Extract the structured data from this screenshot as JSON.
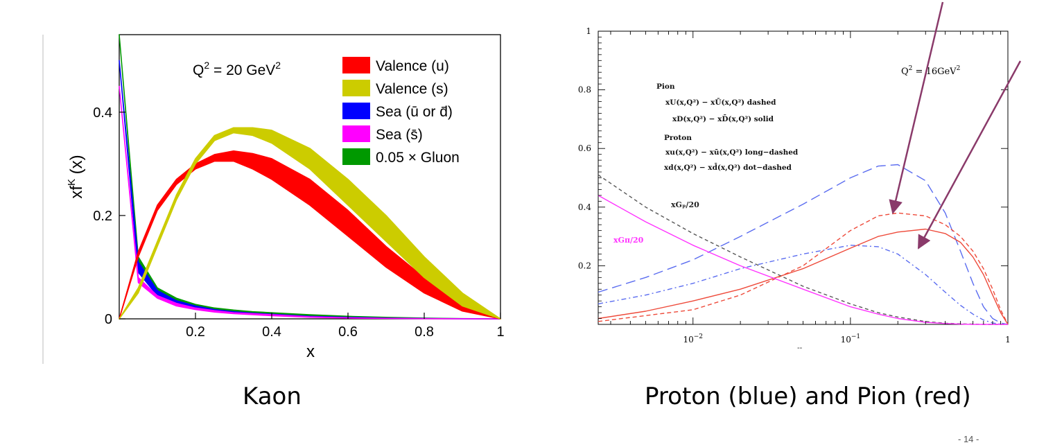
{
  "slide": {
    "captions": {
      "left": "Kaon",
      "right": "Proton (blue) and Pion (red)"
    },
    "page_number": "- 14 -"
  },
  "colors": {
    "valence_u": "#ff0000",
    "valence_s": "#cccc00",
    "sea_ubar_dbar": "#0000ff",
    "sea_sbar": "#ff00ff",
    "gluon": "#009900",
    "proton": "#5a6cf0",
    "pion": "#ee4a3a",
    "gluon_p": "#555555",
    "gluon_pi": "#ff33ff",
    "arrow": "#8a3a6a"
  },
  "chart_data": [
    {
      "type": "area",
      "title": "Q² = 20 GeV²",
      "xlabel": "x",
      "ylabel": "xfᴷ (x)",
      "xlim": [
        0,
        1
      ],
      "ylim": [
        0,
        0.55
      ],
      "xticks": [
        "0.2",
        "0.4",
        "0.6",
        "0.8",
        "1"
      ],
      "yticks": [
        "0",
        "0.2",
        "0.4"
      ],
      "legend_position": "top-right",
      "legend": [
        "Valence (u)",
        "Valence (s)",
        "Sea (ū or d̄)",
        "Sea (s̄)",
        "0.05 × Gluon"
      ],
      "x": [
        0.0,
        0.05,
        0.1,
        0.15,
        0.2,
        0.25,
        0.3,
        0.35,
        0.4,
        0.5,
        0.6,
        0.7,
        0.8,
        0.9,
        1.0
      ],
      "series": [
        {
          "name": "Valence (u)",
          "color": "valence_u",
          "lower": [
            0.0,
            0.12,
            0.21,
            0.26,
            0.29,
            0.305,
            0.305,
            0.29,
            0.27,
            0.22,
            0.16,
            0.1,
            0.05,
            0.015,
            0.0
          ],
          "upper": [
            0.0,
            0.13,
            0.22,
            0.27,
            0.3,
            0.318,
            0.325,
            0.32,
            0.31,
            0.27,
            0.21,
            0.14,
            0.08,
            0.03,
            0.0
          ]
        },
        {
          "name": "Valence (s)",
          "color": "valence_s",
          "lower": [
            0.0,
            0.05,
            0.14,
            0.23,
            0.3,
            0.345,
            0.36,
            0.355,
            0.34,
            0.29,
            0.22,
            0.15,
            0.08,
            0.025,
            0.0
          ],
          "upper": [
            0.0,
            0.06,
            0.15,
            0.24,
            0.31,
            0.355,
            0.37,
            0.37,
            0.365,
            0.33,
            0.27,
            0.2,
            0.12,
            0.05,
            0.0
          ]
        },
        {
          "name": "Sea (ū or d̄)",
          "color": "sea_ubar_dbar",
          "lower": [
            0.5,
            0.09,
            0.045,
            0.03,
            0.02,
            0.015,
            0.012,
            0.009,
            0.007,
            0.004,
            0.002,
            0.001,
            0.0005,
            0.0002,
            0.0
          ],
          "upper": [
            0.5,
            0.11,
            0.055,
            0.035,
            0.025,
            0.018,
            0.014,
            0.011,
            0.009,
            0.005,
            0.003,
            0.0015,
            0.0007,
            0.0003,
            0.0
          ]
        },
        {
          "name": "Sea (s̄)",
          "color": "sea_sbar",
          "lower": [
            0.45,
            0.07,
            0.04,
            0.025,
            0.018,
            0.013,
            0.01,
            0.008,
            0.006,
            0.003,
            0.0015,
            0.0008,
            0.0003,
            0.0001,
            0.0
          ],
          "upper": [
            0.45,
            0.08,
            0.045,
            0.03,
            0.021,
            0.016,
            0.012,
            0.01,
            0.008,
            0.004,
            0.002,
            0.001,
            0.0005,
            0.0002,
            0.0
          ]
        },
        {
          "name": "0.05 × Gluon",
          "color": "gluon",
          "lower": [
            0.55,
            0.11,
            0.055,
            0.035,
            0.025,
            0.019,
            0.015,
            0.012,
            0.01,
            0.006,
            0.004,
            0.002,
            0.001,
            0.0004,
            0.0
          ],
          "upper": [
            0.55,
            0.12,
            0.06,
            0.04,
            0.028,
            0.021,
            0.017,
            0.014,
            0.012,
            0.008,
            0.005,
            0.003,
            0.0015,
            0.0005,
            0.0
          ]
        }
      ]
    },
    {
      "type": "line",
      "title": "Q² = 16GeV²",
      "xlabel": "--",
      "xscale": "log",
      "xlim": [
        0.0025,
        1
      ],
      "ylim": [
        0,
        1
      ],
      "xticks": [
        {
          "value": 0.01,
          "base": "10",
          "exp": "−2"
        },
        {
          "value": 0.1,
          "base": "10",
          "exp": "−1"
        },
        {
          "value": 1,
          "base": "1",
          "exp": ""
        }
      ],
      "yticks": [
        "0.2",
        "0.4",
        "0.6",
        "0.8",
        "1"
      ],
      "legend_lines": [
        "Pion",
        "xU(x,Q²) − xŪ(x,Q²) dashed",
        "xD(x,Q²) − xD̄(x,Q²) solid",
        "Proton",
        "xu(x,Q²) − xū(x,Q²) long−dashed",
        "xd(x,Q²) − xd̄(x,Q²) dot−dashed"
      ],
      "annotations": [
        "xGₚ/20",
        "xGπ/20"
      ],
      "x": [
        0.0025,
        0.005,
        0.01,
        0.02,
        0.05,
        0.1,
        0.15,
        0.2,
        0.3,
        0.4,
        0.5,
        0.6,
        0.7,
        0.8,
        0.9,
        1.0
      ],
      "series": [
        {
          "name": "Proton xu − xū (long-dashed)",
          "color": "proton",
          "dash": "14,7",
          "y": [
            0.11,
            0.16,
            0.22,
            0.3,
            0.41,
            0.5,
            0.54,
            0.545,
            0.49,
            0.38,
            0.25,
            0.14,
            0.06,
            0.02,
            0.005,
            0.0
          ]
        },
        {
          "name": "Proton xd − xd̄ (dot-dashed)",
          "color": "proton",
          "dash": "7,4,2,4",
          "y": [
            0.07,
            0.1,
            0.14,
            0.19,
            0.24,
            0.27,
            0.265,
            0.24,
            0.17,
            0.11,
            0.065,
            0.035,
            0.015,
            0.005,
            0.001,
            0.0
          ]
        },
        {
          "name": "Pion xU − xŪ (dashed)",
          "color": "pion",
          "dash": "6,4",
          "y": [
            0.01,
            0.03,
            0.05,
            0.1,
            0.2,
            0.32,
            0.37,
            0.38,
            0.37,
            0.34,
            0.3,
            0.25,
            0.19,
            0.12,
            0.05,
            0.0
          ]
        },
        {
          "name": "Pion xD − xD̄ (solid)",
          "color": "pion",
          "dash": "",
          "y": [
            0.02,
            0.045,
            0.08,
            0.12,
            0.19,
            0.26,
            0.3,
            0.315,
            0.325,
            0.31,
            0.28,
            0.23,
            0.17,
            0.1,
            0.04,
            0.0
          ]
        },
        {
          "name": "xGₚ/20",
          "color": "gluon_p",
          "dash": "5,4",
          "y": [
            0.51,
            0.4,
            0.31,
            0.23,
            0.13,
            0.07,
            0.04,
            0.025,
            0.01,
            0.004,
            0.002,
            0.001,
            0.0,
            0.0,
            0.0,
            0.0
          ]
        },
        {
          "name": "xGπ/20",
          "color": "gluon_pi",
          "dash": "",
          "y": [
            0.44,
            0.35,
            0.27,
            0.2,
            0.12,
            0.06,
            0.035,
            0.02,
            0.007,
            0.003,
            0.001,
            0.0,
            0.0,
            0.0,
            0.0,
            0.0
          ]
        }
      ]
    }
  ]
}
